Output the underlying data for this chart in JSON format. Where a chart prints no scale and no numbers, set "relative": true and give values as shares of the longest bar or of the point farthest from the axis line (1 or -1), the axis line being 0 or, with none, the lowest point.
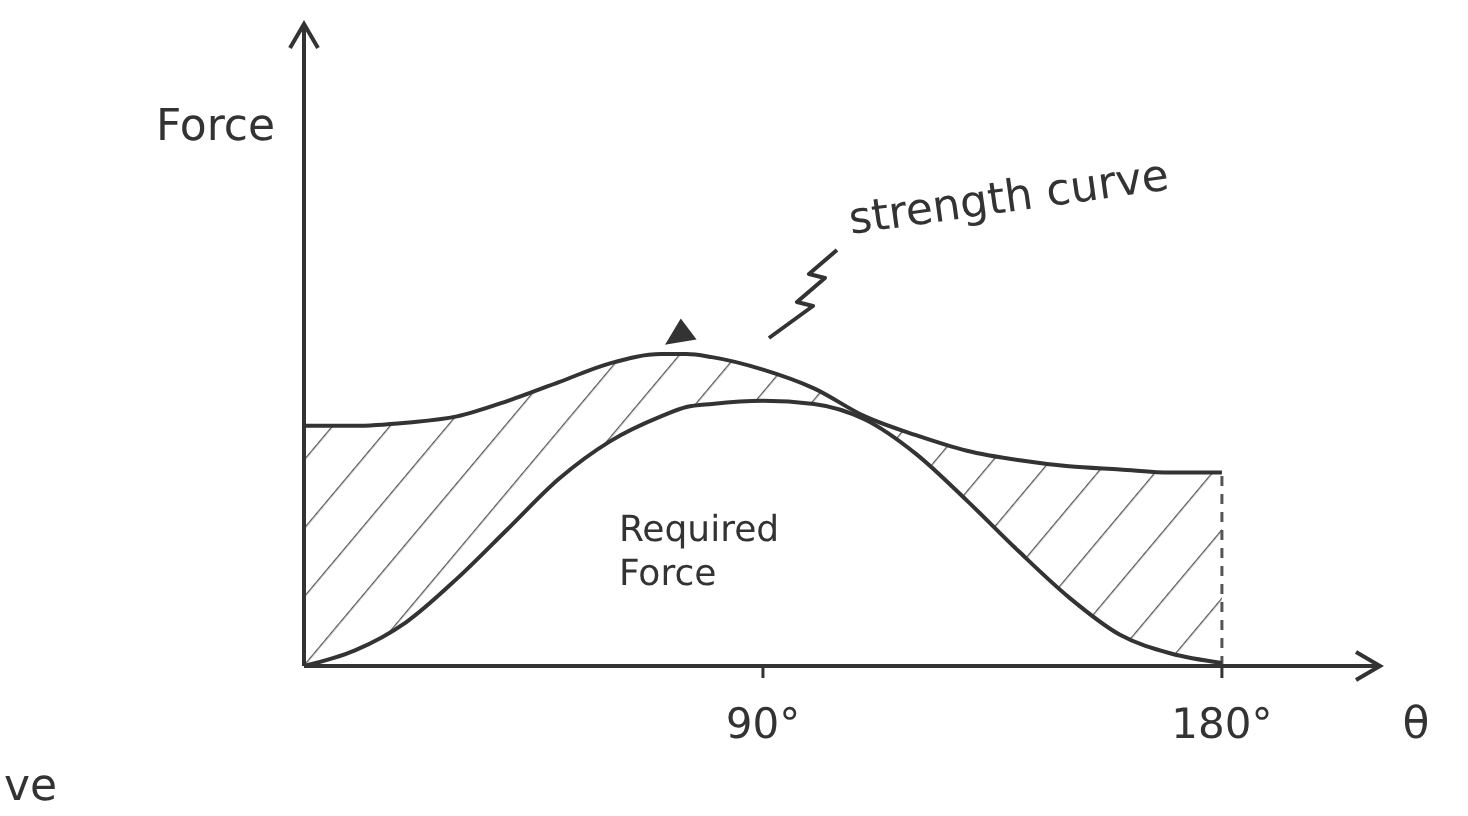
{
  "chart_data": {
    "type": "line",
    "relative": true,
    "ylabel": "Force",
    "xlabel": "θ",
    "xlim": [
      0,
      211
    ],
    "xticks": [
      {
        "value": 90,
        "label": "90°"
      },
      {
        "value": 180,
        "label": "180°"
      }
    ],
    "x": [
      0,
      10,
      20,
      30,
      40,
      50,
      60,
      70,
      75,
      80,
      90,
      100,
      110,
      120,
      130,
      140,
      150,
      160,
      170,
      180
    ],
    "series": [
      {
        "name": "strength curve",
        "color": "#333333",
        "values": [
          0.77,
          0.77,
          0.78,
          0.8,
          0.85,
          0.91,
          0.97,
          1.0,
          1.0,
          0.99,
          0.95,
          0.89,
          0.8,
          0.74,
          0.69,
          0.66,
          0.64,
          0.63,
          0.62,
          0.62
        ],
        "lower": [
          0,
          0.05,
          0.14,
          0.28,
          0.44,
          0.6,
          0.72,
          0.8,
          0.83,
          0.84,
          0.85,
          0.84,
          0.79,
          0.68,
          0.53,
          0.37,
          0.22,
          0.1,
          0.04,
          0.01
        ],
        "upper": [
          0.77,
          0.77,
          0.78,
          0.8,
          0.85,
          0.91,
          0.97,
          1.0,
          1.0,
          0.99,
          0.95,
          0.89,
          0.8,
          0.74,
          0.69,
          0.66,
          0.64,
          0.63,
          0.62,
          0.62
        ]
      },
      {
        "name": "Required Force",
        "color": "#333333",
        "values": [
          0,
          0.05,
          0.14,
          0.28,
          0.44,
          0.6,
          0.72,
          0.8,
          0.83,
          0.84,
          0.85,
          0.84,
          0.79,
          0.68,
          0.53,
          0.37,
          0.22,
          0.1,
          0.04,
          0.01
        ]
      }
    ],
    "annotations": [
      "ve"
    ],
    "ref_lines": [
      {
        "axis": "x",
        "value": 180,
        "line_style": "dashed",
        "color": "#555555"
      }
    ],
    "grid": false,
    "marker": "none",
    "line_style": "solid"
  }
}
